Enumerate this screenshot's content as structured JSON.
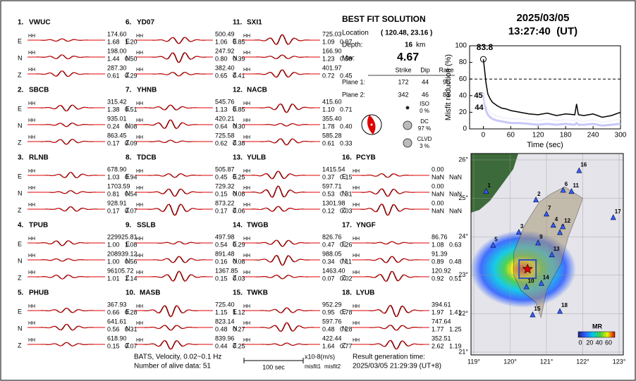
{
  "stations": [
    {
      "index": "1.",
      "name": "VWUC",
      "components": [
        {
          "channel": "HH",
          "comp": "E",
          "amplitude": "174.60",
          "misfit1": "1.68",
          "misfit2": "1.20"
        },
        {
          "channel": "HH",
          "comp": "N",
          "amplitude": "198.00",
          "misfit1": "1.44",
          "misfit2": "0.50"
        },
        {
          "channel": "HH",
          "comp": "Z",
          "amplitude": "287.30",
          "misfit1": "0.61",
          "misfit2": "0.29"
        }
      ]
    },
    {
      "index": "2.",
      "name": "SBCB",
      "components": [
        {
          "channel": "HH",
          "comp": "E",
          "amplitude": "315.42",
          "misfit1": "1.38",
          "misfit2": "0.51"
        },
        {
          "channel": "HH",
          "comp": "N",
          "amplitude": "935.01",
          "misfit1": "0.24",
          "misfit2": "0.08"
        },
        {
          "channel": "HH",
          "comp": "Z",
          "amplitude": "863.45",
          "misfit1": "0.17",
          "misfit2": "0.09"
        }
      ]
    },
    {
      "index": "3.",
      "name": "RLNB",
      "components": [
        {
          "channel": "HH",
          "comp": "E",
          "amplitude": "678.90",
          "misfit1": "1.03",
          "misfit2": "0.94"
        },
        {
          "channel": "HH",
          "comp": "N",
          "amplitude": "1703.59",
          "misfit1": "0.81",
          "misfit2": "0.54"
        },
        {
          "channel": "HH",
          "comp": "Z",
          "amplitude": "928.91",
          "misfit1": "0.17",
          "misfit2": "0.07"
        }
      ]
    },
    {
      "index": "4.",
      "name": "TPUB",
      "components": [
        {
          "channel": "HH",
          "comp": "E",
          "amplitude": "229925.81",
          "misfit1": "1.00",
          "misfit2": "1.08"
        },
        {
          "channel": "HH",
          "comp": "N",
          "amplitude": "208939.12",
          "misfit1": "1.00",
          "misfit2": "0.56"
        },
        {
          "channel": "HH",
          "comp": "Z",
          "amplitude": "96105.72",
          "misfit1": "1.01",
          "misfit2": "1.14"
        }
      ]
    },
    {
      "index": "5.",
      "name": "PHUB",
      "components": [
        {
          "channel": "HH",
          "comp": "E",
          "amplitude": "367.93",
          "misfit1": "0.66",
          "misfit2": "0.28"
        },
        {
          "channel": "HH",
          "comp": "N",
          "amplitude": "641.61",
          "misfit1": "0.56",
          "misfit2": "0.31"
        },
        {
          "channel": "HH",
          "comp": "Z",
          "amplitude": "618.90",
          "misfit1": "0.15",
          "misfit2": "0.07"
        }
      ]
    },
    {
      "index": "6.",
      "name": "YD07",
      "components": [
        {
          "channel": "HH",
          "comp": "E",
          "amplitude": "500.49",
          "misfit1": "1.06",
          "misfit2": "0.85"
        },
        {
          "channel": "HH",
          "comp": "N",
          "amplitude": "247.92",
          "misfit1": "0.80",
          "misfit2": "0.39"
        },
        {
          "channel": "HH",
          "comp": "Z",
          "amplitude": "382.40",
          "misfit1": "0.65",
          "misfit2": "0.41"
        }
      ]
    },
    {
      "index": "7.",
      "name": "YHNB",
      "components": [
        {
          "channel": "HH",
          "comp": "E",
          "amplitude": "545.76",
          "misfit1": "1.13",
          "misfit2": "0.85"
        },
        {
          "channel": "HH",
          "comp": "N",
          "amplitude": "420.21",
          "misfit1": "0.64",
          "misfit2": "0.30"
        },
        {
          "channel": "HH",
          "comp": "Z",
          "amplitude": "725.58",
          "misfit1": "0.62",
          "misfit2": "0.38"
        }
      ]
    },
    {
      "index": "8.",
      "name": "TDCB",
      "components": [
        {
          "channel": "HH",
          "comp": "E",
          "amplitude": "505.87",
          "misfit1": "0.45",
          "misfit2": "0.25"
        },
        {
          "channel": "HH",
          "comp": "N",
          "amplitude": "729.32",
          "misfit1": "0.15",
          "misfit2": "0.08"
        },
        {
          "channel": "HH",
          "comp": "Z",
          "amplitude": "873.22",
          "misfit1": "0.17",
          "misfit2": "0.06"
        }
      ]
    },
    {
      "index": "9.",
      "name": "SSLB",
      "components": [
        {
          "channel": "HH",
          "comp": "E",
          "amplitude": "497.98",
          "misfit1": "0.54",
          "misfit2": "0.29"
        },
        {
          "channel": "HH",
          "comp": "N",
          "amplitude": "891.48",
          "misfit1": "0.16",
          "misfit2": "0.08"
        },
        {
          "channel": "HH",
          "comp": "Z",
          "amplitude": "1367.85",
          "misfit1": "0.15",
          "misfit2": "0.03"
        }
      ]
    },
    {
      "index": "10.",
      "name": "MASB",
      "components": [
        {
          "channel": "HH",
          "comp": "E",
          "amplitude": "725.40",
          "misfit1": "1.15",
          "misfit2": "1.12"
        },
        {
          "channel": "HH",
          "comp": "N",
          "amplitude": "823.14",
          "misfit1": "0.48",
          "misfit2": "0.27"
        },
        {
          "channel": "HH",
          "comp": "Z",
          "amplitude": "839.96",
          "misfit1": "0.44",
          "misfit2": "0.25"
        }
      ]
    },
    {
      "index": "11.",
      "name": "SXI1",
      "components": [
        {
          "channel": "HH",
          "comp": "E",
          "amplitude": "725.03",
          "misfit1": "1.09",
          "misfit2": "0.97"
        },
        {
          "channel": "HH",
          "comp": "N",
          "amplitude": "166.90",
          "misfit1": "1.23",
          "misfit2": "0.59"
        },
        {
          "channel": "HH",
          "comp": "Z",
          "amplitude": "401.97",
          "misfit1": "0.72",
          "misfit2": "0.45"
        }
      ]
    },
    {
      "index": "12.",
      "name": "NACB",
      "components": [
        {
          "channel": "HH",
          "comp": "E",
          "amplitude": "415.60",
          "misfit1": "1.10",
          "misfit2": "0.71"
        },
        {
          "channel": "HH",
          "comp": "N",
          "amplitude": "355.40",
          "misfit1": "1.78",
          "misfit2": "0.40"
        },
        {
          "channel": "HH",
          "comp": "Z",
          "amplitude": "585.28",
          "misfit1": "0.61",
          "misfit2": "0.33"
        }
      ]
    },
    {
      "index": "13.",
      "name": "YULB",
      "components": [
        {
          "channel": "HH",
          "comp": "E",
          "amplitude": "1415.54",
          "misfit1": "0.37",
          "misfit2": "0.15"
        },
        {
          "channel": "HH",
          "comp": "N",
          "amplitude": "597.71",
          "misfit1": "0.53",
          "misfit2": "0.31"
        },
        {
          "channel": "HH",
          "comp": "Z",
          "amplitude": "1301.98",
          "misfit1": "0.12",
          "misfit2": "0.03"
        }
      ]
    },
    {
      "index": "14.",
      "name": "TWGB",
      "components": [
        {
          "channel": "HH",
          "comp": "E",
          "amplitude": "826.76",
          "misfit1": "0.47",
          "misfit2": "0.26"
        },
        {
          "channel": "HH",
          "comp": "N",
          "amplitude": "988.05",
          "misfit1": "0.34",
          "misfit2": "0.11"
        },
        {
          "channel": "HH",
          "comp": "Z",
          "amplitude": "1463.40",
          "misfit1": "0.07",
          "misfit2": "0.02"
        }
      ]
    },
    {
      "index": "15.",
      "name": "TWKB",
      "components": [
        {
          "channel": "HH",
          "comp": "E",
          "amplitude": "952.29",
          "misfit1": "0.95",
          "misfit2": "0.78"
        },
        {
          "channel": "HH",
          "comp": "N",
          "amplitude": "597.76",
          "misfit1": "0.48",
          "misfit2": "0.28"
        },
        {
          "channel": "HH",
          "comp": "Z",
          "amplitude": "422.44",
          "misfit1": "1.64",
          "misfit2": "0.77"
        }
      ]
    },
    {
      "index": "16.",
      "name": "PCYB",
      "components": [
        {
          "channel": "HH",
          "comp": "E",
          "amplitude": "0.00",
          "misfit1": "NaN",
          "misfit2": "NaN"
        },
        {
          "channel": "HH",
          "comp": "N",
          "amplitude": "0.00",
          "misfit1": "NaN",
          "misfit2": "NaN"
        },
        {
          "channel": "HH",
          "comp": "Z",
          "amplitude": "0.00",
          "misfit1": "NaN",
          "misfit2": "NaN"
        }
      ]
    },
    {
      "index": "17.",
      "name": "YNGF",
      "components": [
        {
          "channel": "HH",
          "comp": "E",
          "amplitude": "86.76",
          "misfit1": "1.08",
          "misfit2": "0.63"
        },
        {
          "channel": "HH",
          "comp": "N",
          "amplitude": "91.39",
          "misfit1": "0.89",
          "misfit2": "0.48"
        },
        {
          "channel": "HH",
          "comp": "Z",
          "amplitude": "120.92",
          "misfit1": "0.92",
          "misfit2": "0.51"
        }
      ]
    },
    {
      "index": "18.",
      "name": "LYUB",
      "components": [
        {
          "channel": "HH",
          "comp": "E",
          "amplitude": "394.61",
          "misfit1": "1.97",
          "misfit2": "1.41"
        },
        {
          "channel": "HH",
          "comp": "N",
          "amplitude": "747.64",
          "misfit1": "1.77",
          "misfit2": "1.25"
        },
        {
          "channel": "HH",
          "comp": "Z",
          "amplitude": "352.51",
          "misfit1": "2.62",
          "misfit2": "1.19"
        }
      ]
    }
  ],
  "solution": {
    "title": "BEST FIT SOLUTION",
    "location_label": "Location",
    "location": "( 120.48, 23.16 )",
    "depth_label": "Depth:",
    "depth": "16",
    "depth_unit": "km",
    "mw_label": "Mw:",
    "mw": "4.67",
    "table": {
      "header": [
        "Strike",
        "Dip",
        "Rake"
      ],
      "rows": [
        [
          "Plane 1:",
          "172",
          "44",
          "96"
        ],
        [
          "Plane 2:",
          "342",
          "46",
          "83"
        ]
      ]
    },
    "components": [
      {
        "name": "ISO",
        "percent": "0 %"
      },
      {
        "name": "DC",
        "percent": "97 %"
      },
      {
        "name": "CLVD",
        "percent": "3 %"
      }
    ]
  },
  "header": {
    "date": "2025/03/05",
    "time": "13:27:40  (UT)"
  },
  "misfit_plot": {
    "y_label": "Misfit reduction (%)",
    "x_label": "Time (sec)",
    "xlim": [
      -30,
      300
    ],
    "ylim": [
      0,
      100
    ],
    "xticks": [
      0,
      60,
      120,
      180,
      240,
      300
    ],
    "yticks": [
      0,
      20,
      40,
      60,
      80,
      100
    ],
    "threshold": 60,
    "peak_label": "83.8",
    "white_label": "45",
    "lavender_label": "44",
    "x": [
      0,
      3,
      6,
      10,
      15,
      20,
      30,
      40,
      50,
      60,
      80,
      100,
      120,
      140,
      160,
      180,
      200,
      204,
      208,
      220,
      240,
      260,
      280,
      300
    ],
    "series": [
      {
        "color": "#c8c8f8",
        "values": [
          44,
          30,
          22,
          17,
          14,
          12,
          10,
          9,
          8,
          7,
          7,
          6,
          5,
          6,
          5,
          6,
          5,
          7,
          5,
          5,
          6,
          4,
          5,
          6
        ]
      },
      {
        "color": "#f0f0ff",
        "values": [
          45,
          35,
          28,
          24,
          20,
          18,
          15,
          14,
          13,
          12,
          12,
          11,
          10,
          12,
          10,
          11,
          10,
          13,
          10,
          9,
          11,
          8,
          10,
          12
        ]
      },
      {
        "color": "#000000",
        "values": [
          83.8,
          70,
          55,
          42,
          36,
          32,
          28,
          25,
          24,
          22,
          20,
          18,
          17,
          19,
          16,
          18,
          17,
          30,
          17,
          16,
          18,
          14,
          16,
          20
        ]
      }
    ]
  },
  "map": {
    "lonticks": [
      {
        "value": 119,
        "label": "119°"
      },
      {
        "value": 120,
        "label": "120°"
      },
      {
        "value": 121,
        "label": "121°"
      },
      {
        "value": 122,
        "label": "122°"
      },
      {
        "value": 123,
        "label": "123°"
      }
    ],
    "latticks": [
      {
        "value": 21,
        "label": "21°"
      },
      {
        "value": 22,
        "label": "22°"
      },
      {
        "value": 23,
        "label": "23°"
      },
      {
        "value": 24,
        "label": "24°"
      },
      {
        "value": 25,
        "label": "25°"
      },
      {
        "value": 26,
        "label": "26°"
      }
    ],
    "epicenter": {
      "lon": 120.48,
      "lat": 23.16
    },
    "colorbar_title": "MR",
    "colorbar_ticks": [
      0,
      20,
      40,
      60
    ],
    "stations": [
      {
        "label": "1",
        "lon": 119.34,
        "lat": 25.18
      },
      {
        "label": "2",
        "lon": 120.71,
        "lat": 24.96
      },
      {
        "label": "3",
        "lon": 120.24,
        "lat": 24.12
      },
      {
        "label": "4",
        "lon": 121.19,
        "lat": 24.3
      },
      {
        "label": "5",
        "lon": 119.53,
        "lat": 23.78
      },
      {
        "label": "6",
        "lon": 121.46,
        "lat": 25.21
      },
      {
        "label": "7",
        "lon": 121.0,
        "lat": 24.59
      },
      {
        "label": "8",
        "lon": 121.37,
        "lat": 24.11
      },
      {
        "label": "9",
        "lon": 120.77,
        "lat": 23.84
      },
      {
        "label": "10",
        "lon": 120.45,
        "lat": 22.7
      },
      {
        "label": "11",
        "lon": 121.69,
        "lat": 25.18
      },
      {
        "label": "12",
        "lon": 121.45,
        "lat": 24.26
      },
      {
        "label": "13",
        "lon": 121.15,
        "lat": 23.53
      },
      {
        "label": "14",
        "lon": 120.86,
        "lat": 22.79
      },
      {
        "label": "15",
        "lon": 120.62,
        "lat": 21.97
      },
      {
        "label": "16",
        "lon": 121.9,
        "lat": 25.72
      },
      {
        "label": "17",
        "lon": 122.84,
        "lat": 24.5
      },
      {
        "label": "18",
        "lon": 121.37,
        "lat": 22.06
      }
    ]
  },
  "footer": {
    "filter": "BATS, Velocity, 0.02~0.1 Hz",
    "alive": "Number of alive data: 51",
    "scale": "100 sec",
    "units": "x10-8(m/s)",
    "misfit1": "misfit1",
    "misfit2": "misfit2",
    "result_label": "Result generation time:",
    "result_time": "2025/03/05 21:29:39 (UT+8)"
  }
}
